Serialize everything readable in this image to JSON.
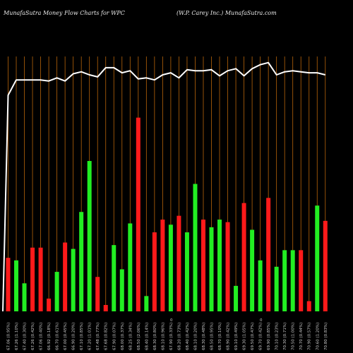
{
  "header": {
    "title_left": "MunafaSutra  Money Flow  Charts for WPC",
    "title_right": "(W.P. Carey Inc.) MunafaSutra.com"
  },
  "colors": {
    "background": "#000000",
    "gridline": "#b8640a",
    "price_line": "#ffffff",
    "up_bar": "#22ee22",
    "down_bar": "#ff1a1a"
  },
  "chart_data": {
    "type": "bar",
    "categories": [
      "17 Oct 2025",
      "16 Oct 2025",
      "15 Oct 2025",
      "14 Oct 2025",
      "13 Oct 2025",
      "10 Oct 2025",
      "9 Oct 2025",
      "8 Oct 2025",
      "7 Oct 2025",
      "6 Oct 2025",
      "3 Oct 2025",
      "2 Oct 2025",
      "1 Oct 2025",
      "30 Sep 2025",
      "29 Sep 2025",
      "26 Sep 2025",
      "25 Sep 2025",
      "24 Sep 2025",
      "23 Sep 2025",
      "22 Sep 2025",
      "19 Sep 2025",
      "18 Sep 2025",
      "17 Sep 2025",
      "16 Sep 2025",
      "15 Sep 2025",
      "12 Sep 2025",
      "11 Sep 2025",
      "10 Sep 2025",
      "9 Sep 2025",
      "8 Sep 2025",
      "5 Sep 2025",
      "4 Sep 2025",
      "3 Sep 2025",
      "2 Sep 2025",
      "29 Aug 2025",
      "28 Aug 2025",
      "27 Aug 2025",
      "26 Aug 2025",
      "25 Aug 2025",
      "22 Aug 2025"
    ],
    "x_tick_labels": [
      "67.06 (0.95%)",
      "67.26 (1.10%)",
      "67.40 (0.30%)",
      "67.26 (0.42%)",
      "67.06 (0.40%)",
      "66.92 (0.18%)",
      "66.70 (0.61%)",
      "67.00 (0.45%)",
      "66.90 (0.20%)",
      "67.10 (0.85%)",
      "67.20 (1.01%)",
      "67.48 (0.77%)",
      "67.68 (0.82%)",
      "67.90 (0.07%)",
      "68.00 (0.37%)",
      "68.25 (0.34%)",
      "68.50 (2.06%)",
      "68.40 (0.14%)",
      "68.30 (0.80%)",
      "68.10 (0.96%)",
      "67.90 (0.33%)",
      "68.20 (0.73%)",
      "68.40 (0.42%)",
      "68.10 (0.20%)",
      "68.30 (0.48%)",
      "68.50 (0.95%)",
      "68.70 (0.10%)",
      "68.90 (0.42%)",
      "69.10 (0.49%)",
      "69.30 (1.05%)",
      "69.50 (0.47%)",
      "69.70 (0.42%)",
      "69.90 (0.85%)",
      "70.10 (0.23%)",
      "70.30 (0.71%)",
      "70.50 (1.00%)",
      "70.70 (0.44%)",
      "70.90 (0.57%)",
      "70.60 (1.20%)",
      "70.80 (0.83%)"
    ],
    "middle_markers": [
      "0",
      "0"
    ],
    "series": [
      {
        "name": "",
        "colors": [
          "red",
          "green",
          "green",
          "red",
          "red",
          "red",
          "green",
          "red",
          "green",
          "green",
          "green",
          "red",
          "red",
          "green",
          "green",
          "green",
          "red",
          "green",
          "red",
          "red",
          "green",
          "red",
          "green",
          "green",
          "red",
          "green",
          "green",
          "red",
          "green",
          "red",
          "green",
          "green",
          "red",
          "green",
          "green",
          "green",
          "red",
          "red",
          "green",
          "red"
        ],
        "values": [
          42,
          40,
          22,
          50,
          50,
          10,
          31,
          54,
          49,
          78,
          118,
          27,
          5,
          52,
          33,
          69,
          152,
          12,
          62,
          72,
          68,
          75,
          62,
          100,
          72,
          66,
          72,
          70,
          20,
          85,
          64,
          40,
          89,
          35,
          48,
          48,
          48,
          8,
          83,
          71
        ]
      },
      {
        "name": "",
        "type": "line",
        "values": [
          212,
          227,
          227,
          227,
          227,
          226,
          229,
          226,
          233,
          235,
          232,
          230,
          239,
          239,
          234,
          236,
          228,
          229,
          227,
          232,
          234,
          229,
          237,
          236,
          236,
          237,
          231,
          236,
          238,
          231,
          238,
          242,
          244,
          232,
          235,
          236,
          235,
          234,
          234,
          232
        ]
      }
    ],
    "bar_ylim": [
      0,
      200
    ],
    "line_ylim": [
      0,
      250
    ],
    "grid": "vertical"
  }
}
